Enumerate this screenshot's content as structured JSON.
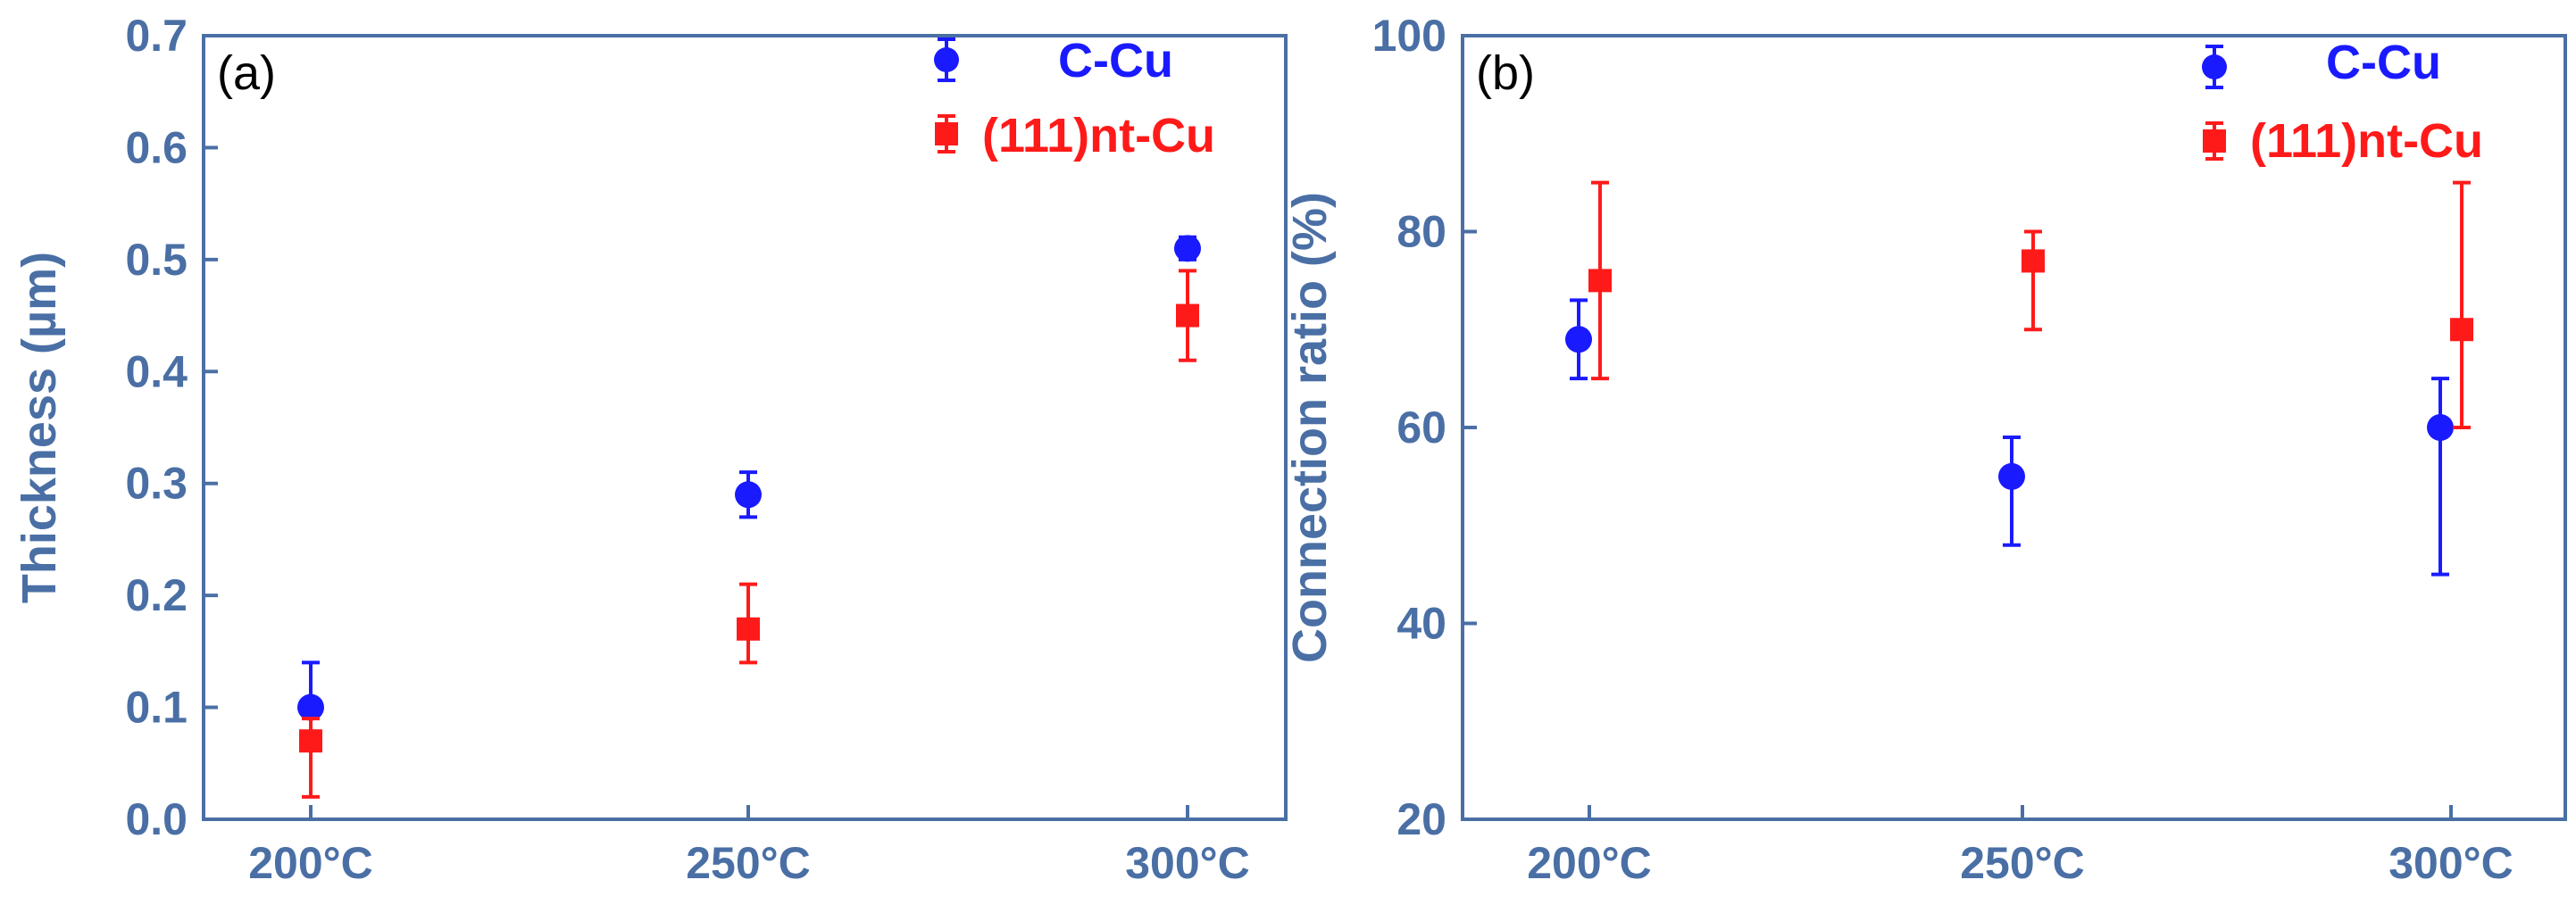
{
  "theme": {
    "axis_color": "#4a6fa5",
    "series_colors": {
      "C-Cu": "#1a1aff",
      "(111)nt-Cu": "#ff1a1a"
    }
  },
  "chart_data": [
    {
      "type": "scatter",
      "panel_label": "(a)",
      "ylabel": "Thickness (µm)",
      "xlabel": "",
      "categories": [
        "200°C",
        "250°C",
        "300°C"
      ],
      "ylim": [
        0.0,
        0.7
      ],
      "yticks": [
        0.0,
        0.1,
        0.2,
        0.3,
        0.4,
        0.5,
        0.6,
        0.7
      ],
      "ytick_labels": [
        "0.0",
        "0.1",
        "0.2",
        "0.3",
        "0.4",
        "0.5",
        "0.6",
        "0.7"
      ],
      "grid": false,
      "legend": "top-right",
      "series": [
        {
          "name": "C-Cu",
          "marker": "circle",
          "color": "#1a1aff",
          "values": [
            0.1,
            0.29,
            0.51
          ],
          "err_low": [
            0.07,
            0.27,
            0.5
          ],
          "err_high": [
            0.14,
            0.31,
            0.52
          ]
        },
        {
          "name": "(111)nt-Cu",
          "marker": "square",
          "color": "#ff1a1a",
          "values": [
            0.07,
            0.17,
            0.45
          ],
          "err_low": [
            0.02,
            0.14,
            0.41
          ],
          "err_high": [
            0.09,
            0.21,
            0.49
          ]
        }
      ]
    },
    {
      "type": "scatter",
      "panel_label": "(b)",
      "ylabel": "Connection ratio (%)",
      "xlabel": "",
      "categories": [
        "200°C",
        "250°C",
        "300°C"
      ],
      "ylim": [
        20,
        100
      ],
      "yticks": [
        20,
        40,
        60,
        80,
        100
      ],
      "ytick_labels": [
        "20",
        "40",
        "60",
        "80",
        "100"
      ],
      "grid": false,
      "legend": "top-right",
      "series": [
        {
          "name": "C-Cu",
          "marker": "circle",
          "color": "#1a1aff",
          "values": [
            69,
            55,
            60
          ],
          "err_low": [
            65,
            48,
            45
          ],
          "err_high": [
            73,
            59,
            65
          ]
        },
        {
          "name": "(111)nt-Cu",
          "marker": "square",
          "color": "#ff1a1a",
          "values": [
            75,
            77,
            70
          ],
          "err_low": [
            65,
            70,
            60
          ],
          "err_high": [
            85,
            80,
            85
          ]
        }
      ]
    }
  ]
}
